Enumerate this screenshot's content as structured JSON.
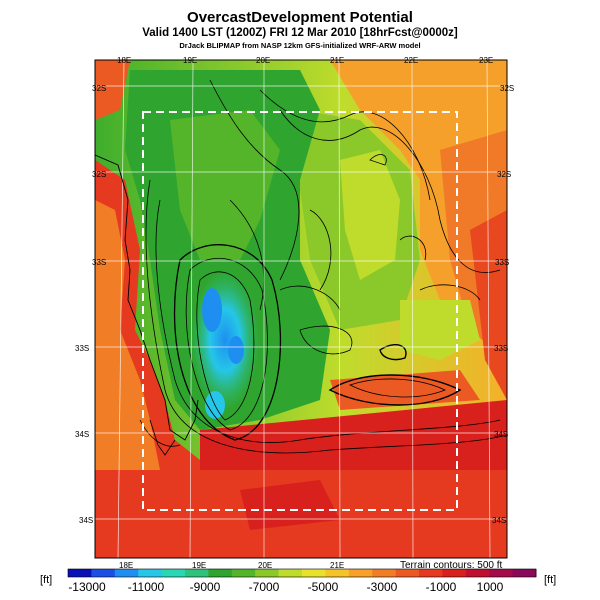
{
  "header": {
    "title": "OvercastDevelopment Potential",
    "subtitle": "Valid 1400 LST (1200Z) FRI 12 Mar 2010 [18hrFcst@0000z]",
    "credit": "DrJack BLIPMAP from NASP 12km GFS-initialized WRF-ARW model"
  },
  "map": {
    "lon_labels_top": [
      "18E",
      "19E",
      "20E",
      "21E",
      "22E",
      "23E"
    ],
    "lon_labels_bottom": [
      "18E",
      "19E",
      "20E",
      "21E"
    ],
    "lat_labels_left": [
      "32S",
      "32S",
      "33S",
      "33S",
      "34S",
      "34S"
    ],
    "lat_labels_right": [
      "32S",
      "32S",
      "33S",
      "33S",
      "34S",
      "34S"
    ],
    "terrain_note": "Terrain contours: 500 ft",
    "colors": {
      "land_low": "#2fa52f",
      "coast_high": "#d41515",
      "frame": "#ffffff",
      "contour": "#000000"
    }
  },
  "colorbar": {
    "unit_left": "[ft]",
    "unit_right": "[ft]",
    "ticks": [
      "-13000",
      "-11000",
      "-9000",
      "-7000",
      "-5000",
      "-3000",
      "-1000",
      "1000"
    ],
    "colors": [
      "#0a10b8",
      "#1c4fe6",
      "#1e8ff0",
      "#25c6e8",
      "#2ad7b4",
      "#2ec27a",
      "#2fa52f",
      "#55b52a",
      "#8bc92a",
      "#bfdc2c",
      "#e8e22e",
      "#f5c32a",
      "#f7a02a",
      "#f27d27",
      "#ec5a24",
      "#e63a20",
      "#d8201c",
      "#c01030",
      "#a50a4a",
      "#8a0a5a"
    ]
  }
}
